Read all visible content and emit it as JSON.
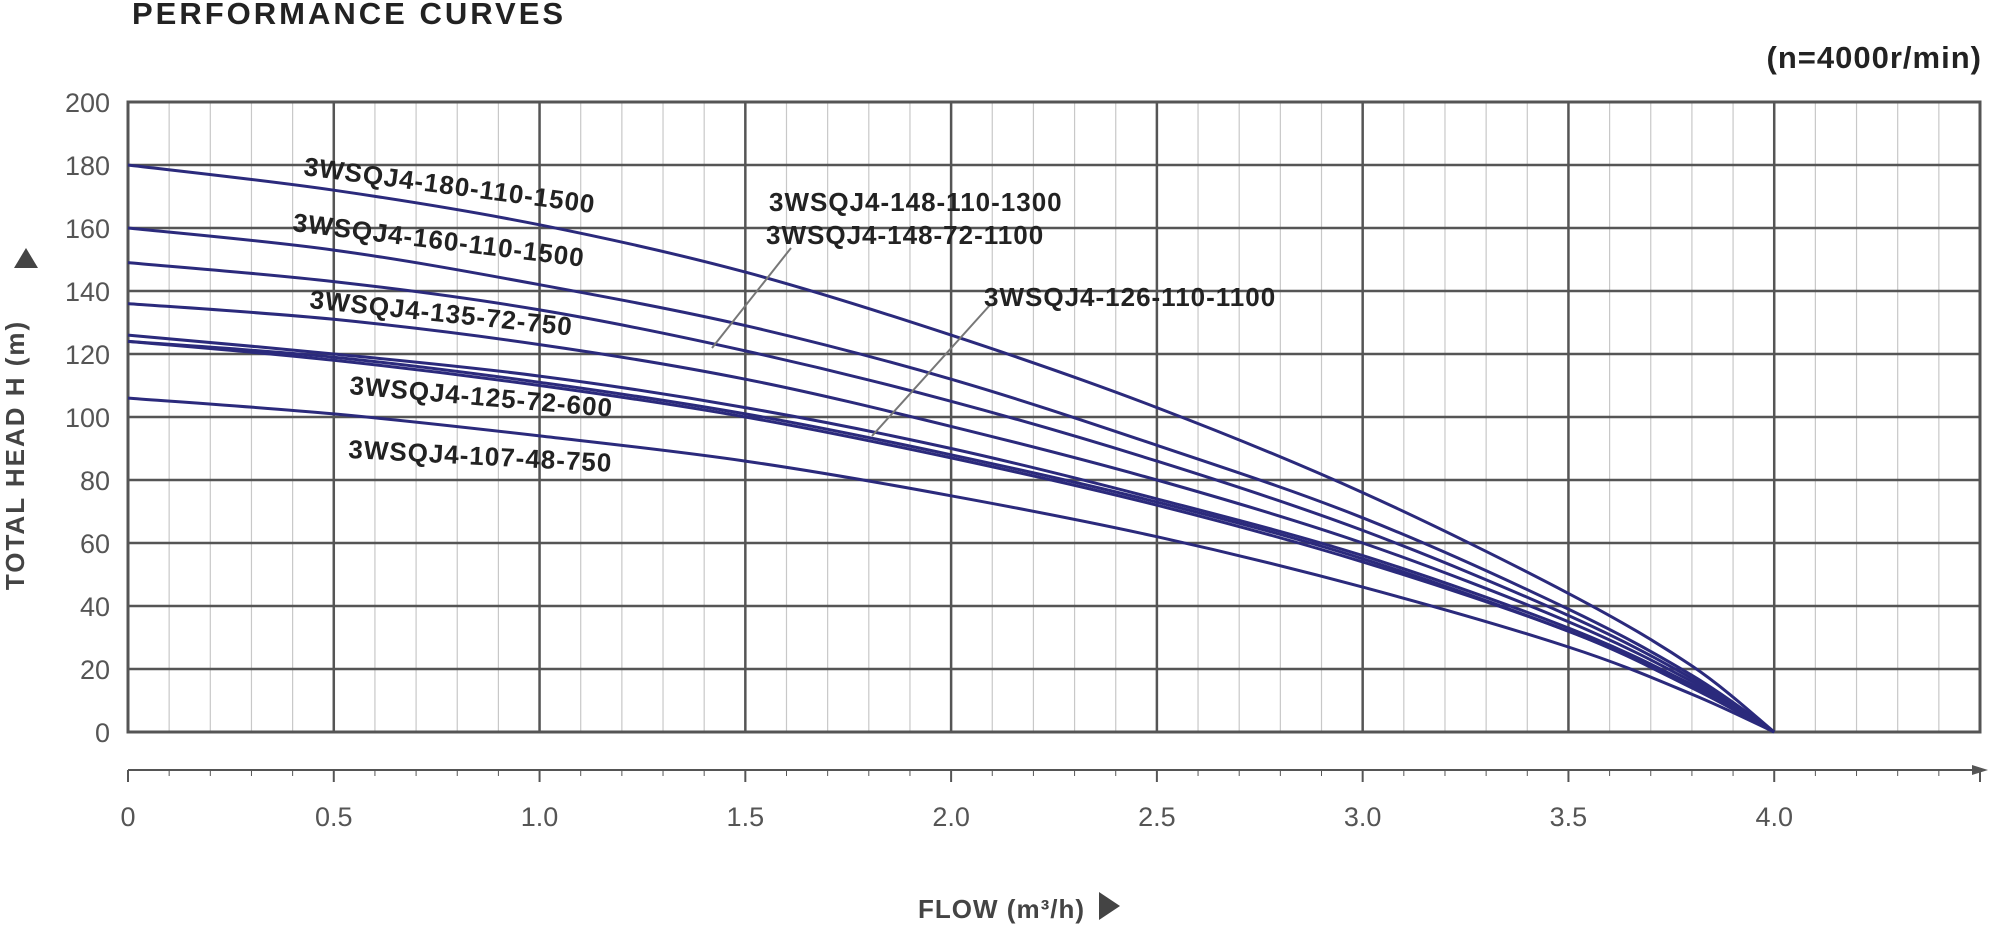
{
  "chart_data": {
    "type": "line",
    "title": "PERFORMANCE CURVES",
    "subtitle": "(n=4000r/min)",
    "xlabel": "FLOW (m³/h)",
    "ylabel": "TOTAL HEAD H (m)",
    "xlim": [
      0,
      4.5
    ],
    "ylim": [
      0,
      200
    ],
    "x_ticks": [
      "0",
      "0.5",
      "1.0",
      "1.5",
      "2.0",
      "2.5",
      "3.0",
      "3.5",
      "4.0"
    ],
    "y_ticks": [
      "0",
      "20",
      "40",
      "60",
      "80",
      "100",
      "120",
      "140",
      "160",
      "180",
      "200"
    ],
    "grid": true,
    "colors": {
      "curve": "#2b2a7c",
      "grid_major": "#555555",
      "grid_minor": "#c8c8c8",
      "text": "#222222",
      "axis_text": "#555555"
    },
    "series": [
      {
        "name": "3WSQJ4-180-110-1500",
        "x": [
          0,
          0.5,
          1.0,
          1.5,
          2.0,
          2.5,
          3.0,
          3.5,
          3.8,
          4.0
        ],
        "y": [
          180,
          172,
          161,
          146,
          126,
          103,
          76,
          44,
          21,
          0
        ]
      },
      {
        "name": "3WSQJ4-160-110-1500",
        "x": [
          0,
          0.5,
          1.0,
          1.5,
          2.0,
          2.5,
          3.0,
          3.5,
          3.8,
          4.0
        ],
        "y": [
          160,
          153,
          142,
          129,
          112,
          91,
          68,
          39,
          18,
          0
        ]
      },
      {
        "name": "3WSQJ4-148-110-1300",
        "x": [
          0,
          0.5,
          1.0,
          1.5,
          2.0,
          2.5,
          3.0,
          3.5,
          3.8,
          4.0
        ],
        "y": [
          149,
          143,
          134,
          121,
          105,
          86,
          64,
          37,
          17,
          0
        ]
      },
      {
        "name": "3WSQJ4-135-72-750",
        "x": [
          0,
          0.5,
          1.0,
          1.5,
          2.0,
          2.5,
          3.0,
          3.5,
          3.8,
          4.0
        ],
        "y": [
          136,
          131,
          123,
          112,
          97,
          80,
          60,
          35,
          16,
          0
        ]
      },
      {
        "name": "3WSQJ4-148-72-1100",
        "x": [
          0,
          0.5,
          1.0,
          1.5,
          2.0,
          2.5,
          3.0,
          3.5,
          3.8,
          4.0
        ],
        "y": [
          126,
          120,
          113,
          103,
          90,
          74,
          56,
          33,
          15,
          0
        ]
      },
      {
        "name": "3WSQJ4-126-110-1100",
        "x": [
          0,
          0.5,
          1.0,
          1.5,
          2.0,
          2.5,
          3.0,
          3.5,
          3.8,
          4.0
        ],
        "y": [
          124,
          119,
          111,
          101,
          88,
          73,
          55,
          32,
          15,
          0
        ]
      },
      {
        "name": "3WSQJ4-125-72-600",
        "x": [
          0,
          0.5,
          1.0,
          1.5,
          2.0,
          2.5,
          3.0,
          3.5,
          3.8,
          4.0
        ],
        "y": [
          124,
          118,
          110,
          100,
          87,
          72,
          54,
          32,
          14,
          0
        ]
      },
      {
        "name": "3WSQJ4-107-48-750",
        "x": [
          0,
          0.5,
          1.0,
          1.5,
          2.0,
          2.5,
          3.0,
          3.5,
          3.8,
          4.0
        ],
        "y": [
          106,
          101,
          94,
          86,
          75,
          62,
          46,
          27,
          12,
          0
        ]
      }
    ]
  }
}
